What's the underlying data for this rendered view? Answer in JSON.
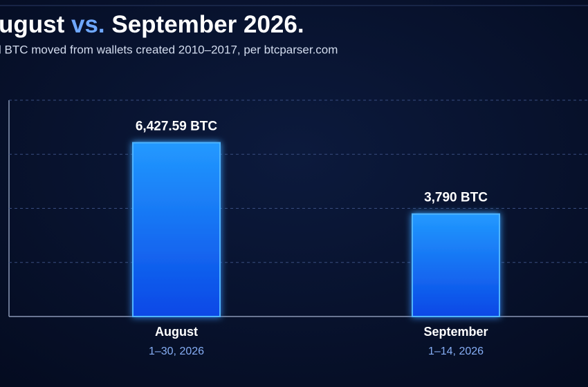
{
  "chart_data": {
    "type": "bar",
    "title_parts": [
      "ugust ",
      "vs.",
      " September 2026."
    ],
    "subtitle": "l BTC moved from wallets created 2010–2017, per btcparser.com",
    "categories": [
      "August",
      "September"
    ],
    "category_sublabels": [
      "1–30, 2026",
      "1–14, 2026"
    ],
    "values": [
      6427.59,
      3790
    ],
    "value_labels": [
      "6,427.59 BTC",
      "3,790 BTC"
    ],
    "color": "#1a7dff",
    "ylim": [
      0,
      8000
    ],
    "yticks": [
      0,
      2000,
      4000,
      6000,
      8000
    ],
    "grid": true
  }
}
